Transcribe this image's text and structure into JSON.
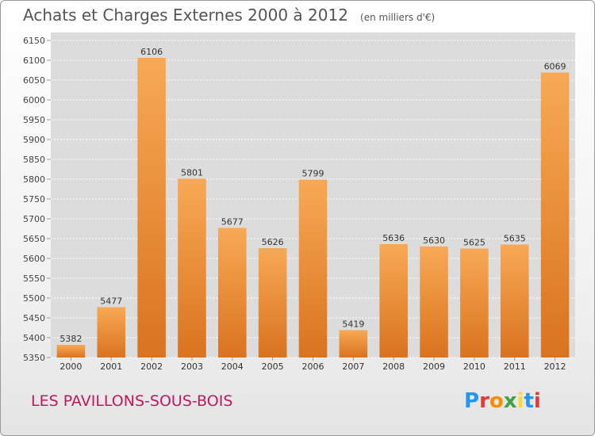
{
  "title": {
    "main": "Achats et Charges Externes 2000 à 2012",
    "unit": "(en milliers d'€)"
  },
  "footer": {
    "city": "LES PAVILLONS-SOUS-BOIS",
    "logo": "Proxiti"
  },
  "colors": {
    "bar_light": "#f8a955",
    "bar_dark": "#d9731f",
    "plot_bg": "#dcdcdc",
    "city_text": "#c2185b",
    "logo_letters": [
      "#2196f3",
      "#e53935",
      "#fb8c00",
      "#43a047",
      "#fdd835",
      "#2196f3",
      "#e53935"
    ]
  },
  "chart_data": {
    "type": "bar",
    "title": "Achats et Charges Externes 2000 à 2012",
    "subtitle": "(en milliers d'€)",
    "categories": [
      "2000",
      "2001",
      "2002",
      "2003",
      "2004",
      "2005",
      "2006",
      "2007",
      "2008",
      "2009",
      "2010",
      "2011",
      "2012"
    ],
    "values": [
      5382,
      5477,
      6106,
      5801,
      5677,
      5626,
      5799,
      5419,
      5636,
      5630,
      5625,
      5635,
      6069
    ],
    "ylim": [
      5350,
      6150
    ],
    "yticks": [
      5350,
      5400,
      5450,
      5500,
      5550,
      5600,
      5650,
      5700,
      5750,
      5800,
      5850,
      5900,
      5950,
      6000,
      6050,
      6100,
      6150
    ],
    "grid": true,
    "xlabel": "",
    "ylabel": ""
  }
}
